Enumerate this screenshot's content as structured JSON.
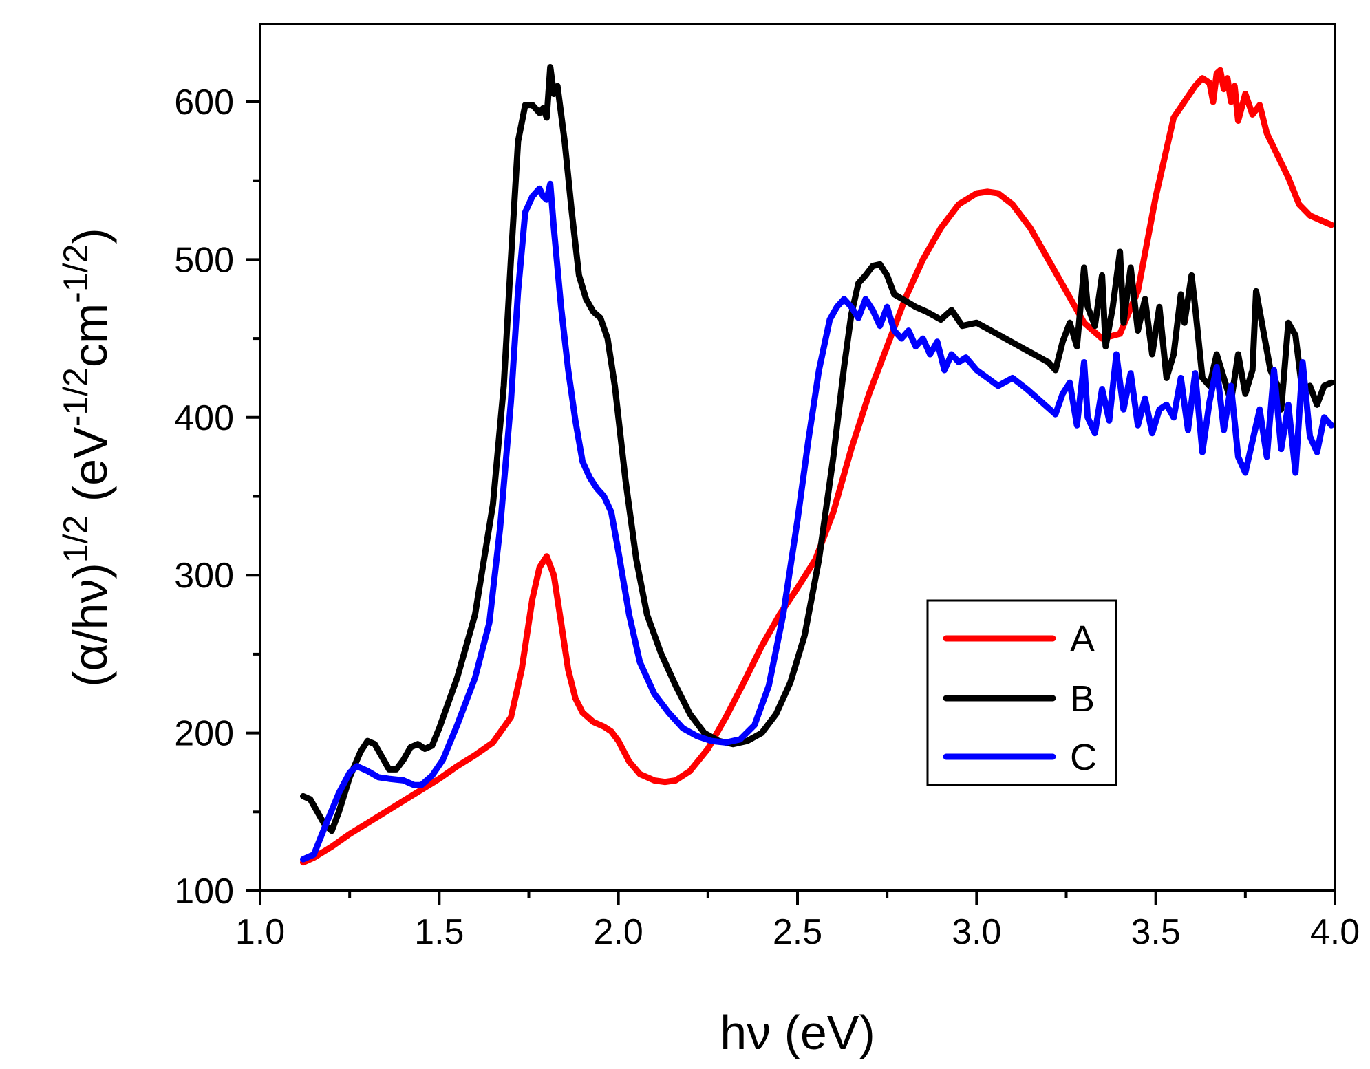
{
  "chart_data": {
    "type": "line",
    "title": "",
    "xlabel": "hν (eV)",
    "ylabel": {
      "base": "(α/hν)",
      "exp1": "1/2",
      "unit1": " (eV",
      "exp2": "-1/2",
      "unit2": "cm",
      "exp3": "-1/2",
      "close": ")"
    },
    "xlim": [
      1.0,
      4.0
    ],
    "ylim": [
      100,
      650
    ],
    "xticks": [
      "1.0",
      "1.5",
      "2.0",
      "2.5",
      "3.0",
      "3.5",
      "4.0"
    ],
    "yticks": [
      "100",
      "200",
      "300",
      "400",
      "500",
      "600"
    ],
    "legend_position": "lower-right",
    "series": [
      {
        "name": "A",
        "color": "#ff0000",
        "points": [
          [
            1.12,
            118
          ],
          [
            1.15,
            121
          ],
          [
            1.2,
            128
          ],
          [
            1.25,
            136
          ],
          [
            1.3,
            143
          ],
          [
            1.35,
            150
          ],
          [
            1.4,
            157
          ],
          [
            1.45,
            164
          ],
          [
            1.5,
            171
          ],
          [
            1.55,
            179
          ],
          [
            1.6,
            186
          ],
          [
            1.65,
            194
          ],
          [
            1.7,
            210
          ],
          [
            1.73,
            240
          ],
          [
            1.76,
            285
          ],
          [
            1.78,
            305
          ],
          [
            1.8,
            312
          ],
          [
            1.82,
            300
          ],
          [
            1.84,
            270
          ],
          [
            1.86,
            240
          ],
          [
            1.88,
            222
          ],
          [
            1.9,
            213
          ],
          [
            1.93,
            207
          ],
          [
            1.96,
            204
          ],
          [
            1.98,
            201
          ],
          [
            2.0,
            195
          ],
          [
            2.03,
            182
          ],
          [
            2.06,
            174
          ],
          [
            2.1,
            170
          ],
          [
            2.13,
            169
          ],
          [
            2.16,
            170
          ],
          [
            2.2,
            176
          ],
          [
            2.25,
            190
          ],
          [
            2.3,
            210
          ],
          [
            2.35,
            232
          ],
          [
            2.4,
            255
          ],
          [
            2.45,
            275
          ],
          [
            2.5,
            292
          ],
          [
            2.55,
            310
          ],
          [
            2.6,
            340
          ],
          [
            2.65,
            380
          ],
          [
            2.7,
            415
          ],
          [
            2.75,
            445
          ],
          [
            2.8,
            475
          ],
          [
            2.85,
            500
          ],
          [
            2.9,
            520
          ],
          [
            2.95,
            535
          ],
          [
            3.0,
            542
          ],
          [
            3.03,
            543
          ],
          [
            3.06,
            542
          ],
          [
            3.1,
            535
          ],
          [
            3.15,
            520
          ],
          [
            3.2,
            500
          ],
          [
            3.25,
            480
          ],
          [
            3.3,
            460
          ],
          [
            3.35,
            450
          ],
          [
            3.4,
            453
          ],
          [
            3.45,
            480
          ],
          [
            3.5,
            540
          ],
          [
            3.55,
            590
          ],
          [
            3.58,
            600
          ],
          [
            3.61,
            610
          ],
          [
            3.63,
            615
          ],
          [
            3.65,
            612
          ],
          [
            3.66,
            600
          ],
          [
            3.67,
            618
          ],
          [
            3.68,
            620
          ],
          [
            3.69,
            608
          ],
          [
            3.7,
            615
          ],
          [
            3.71,
            600
          ],
          [
            3.72,
            610
          ],
          [
            3.73,
            588
          ],
          [
            3.75,
            605
          ],
          [
            3.77,
            592
          ],
          [
            3.79,
            598
          ],
          [
            3.81,
            580
          ],
          [
            3.84,
            566
          ],
          [
            3.87,
            552
          ],
          [
            3.9,
            535
          ],
          [
            3.93,
            528
          ],
          [
            3.96,
            525
          ],
          [
            3.99,
            522
          ]
        ]
      },
      {
        "name": "B",
        "color": "#000000",
        "points": [
          [
            1.12,
            160
          ],
          [
            1.14,
            158
          ],
          [
            1.16,
            150
          ],
          [
            1.18,
            142
          ],
          [
            1.2,
            138
          ],
          [
            1.22,
            150
          ],
          [
            1.25,
            172
          ],
          [
            1.28,
            188
          ],
          [
            1.3,
            195
          ],
          [
            1.32,
            193
          ],
          [
            1.34,
            185
          ],
          [
            1.36,
            177
          ],
          [
            1.38,
            177
          ],
          [
            1.4,
            183
          ],
          [
            1.42,
            191
          ],
          [
            1.44,
            193
          ],
          [
            1.46,
            190
          ],
          [
            1.48,
            192
          ],
          [
            1.5,
            203
          ],
          [
            1.55,
            235
          ],
          [
            1.6,
            275
          ],
          [
            1.65,
            345
          ],
          [
            1.68,
            420
          ],
          [
            1.7,
            500
          ],
          [
            1.72,
            575
          ],
          [
            1.74,
            598
          ],
          [
            1.76,
            598
          ],
          [
            1.78,
            593
          ],
          [
            1.79,
            596
          ],
          [
            1.8,
            590
          ],
          [
            1.81,
            622
          ],
          [
            1.82,
            605
          ],
          [
            1.83,
            610
          ],
          [
            1.85,
            575
          ],
          [
            1.87,
            530
          ],
          [
            1.89,
            490
          ],
          [
            1.91,
            475
          ],
          [
            1.93,
            467
          ],
          [
            1.95,
            463
          ],
          [
            1.97,
            450
          ],
          [
            1.99,
            420
          ],
          [
            2.02,
            360
          ],
          [
            2.05,
            310
          ],
          [
            2.08,
            275
          ],
          [
            2.12,
            250
          ],
          [
            2.16,
            230
          ],
          [
            2.2,
            212
          ],
          [
            2.24,
            200
          ],
          [
            2.28,
            195
          ],
          [
            2.32,
            193
          ],
          [
            2.36,
            195
          ],
          [
            2.4,
            200
          ],
          [
            2.44,
            212
          ],
          [
            2.48,
            232
          ],
          [
            2.52,
            262
          ],
          [
            2.56,
            310
          ],
          [
            2.6,
            375
          ],
          [
            2.63,
            432
          ],
          [
            2.65,
            465
          ],
          [
            2.67,
            485
          ],
          [
            2.69,
            490
          ],
          [
            2.71,
            496
          ],
          [
            2.73,
            497
          ],
          [
            2.75,
            490
          ],
          [
            2.77,
            478
          ],
          [
            2.8,
            474
          ],
          [
            2.83,
            470
          ],
          [
            2.86,
            467
          ],
          [
            2.9,
            462
          ],
          [
            2.93,
            468
          ],
          [
            2.96,
            458
          ],
          [
            3.0,
            460
          ],
          [
            3.04,
            455
          ],
          [
            3.08,
            450
          ],
          [
            3.12,
            445
          ],
          [
            3.16,
            440
          ],
          [
            3.2,
            435
          ],
          [
            3.22,
            430
          ],
          [
            3.24,
            448
          ],
          [
            3.26,
            460
          ],
          [
            3.28,
            445
          ],
          [
            3.3,
            495
          ],
          [
            3.31,
            470
          ],
          [
            3.33,
            458
          ],
          [
            3.35,
            490
          ],
          [
            3.36,
            445
          ],
          [
            3.38,
            470
          ],
          [
            3.4,
            505
          ],
          [
            3.41,
            460
          ],
          [
            3.43,
            495
          ],
          [
            3.45,
            455
          ],
          [
            3.47,
            475
          ],
          [
            3.49,
            440
          ],
          [
            3.51,
            470
          ],
          [
            3.53,
            425
          ],
          [
            3.55,
            440
          ],
          [
            3.57,
            478
          ],
          [
            3.58,
            460
          ],
          [
            3.6,
            490
          ],
          [
            3.61,
            470
          ],
          [
            3.63,
            425
          ],
          [
            3.65,
            420
          ],
          [
            3.67,
            440
          ],
          [
            3.69,
            425
          ],
          [
            3.71,
            410
          ],
          [
            3.73,
            440
          ],
          [
            3.75,
            415
          ],
          [
            3.77,
            430
          ],
          [
            3.78,
            480
          ],
          [
            3.8,
            455
          ],
          [
            3.82,
            430
          ],
          [
            3.84,
            420
          ],
          [
            3.85,
            405
          ],
          [
            3.87,
            460
          ],
          [
            3.89,
            452
          ],
          [
            3.91,
            415
          ],
          [
            3.93,
            420
          ],
          [
            3.95,
            408
          ],
          [
            3.97,
            420
          ],
          [
            3.99,
            422
          ]
        ]
      },
      {
        "name": "C",
        "color": "#0000ff",
        "points": [
          [
            1.12,
            120
          ],
          [
            1.15,
            123
          ],
          [
            1.18,
            140
          ],
          [
            1.22,
            162
          ],
          [
            1.25,
            175
          ],
          [
            1.27,
            179
          ],
          [
            1.3,
            176
          ],
          [
            1.33,
            172
          ],
          [
            1.36,
            171
          ],
          [
            1.4,
            170
          ],
          [
            1.43,
            167
          ],
          [
            1.45,
            167
          ],
          [
            1.48,
            173
          ],
          [
            1.51,
            183
          ],
          [
            1.55,
            205
          ],
          [
            1.6,
            235
          ],
          [
            1.64,
            270
          ],
          [
            1.67,
            330
          ],
          [
            1.7,
            410
          ],
          [
            1.72,
            480
          ],
          [
            1.74,
            530
          ],
          [
            1.76,
            540
          ],
          [
            1.78,
            545
          ],
          [
            1.79,
            540
          ],
          [
            1.8,
            538
          ],
          [
            1.81,
            548
          ],
          [
            1.82,
            520
          ],
          [
            1.84,
            470
          ],
          [
            1.86,
            430
          ],
          [
            1.88,
            398
          ],
          [
            1.9,
            372
          ],
          [
            1.92,
            362
          ],
          [
            1.94,
            355
          ],
          [
            1.96,
            350
          ],
          [
            1.98,
            340
          ],
          [
            2.0,
            315
          ],
          [
            2.03,
            275
          ],
          [
            2.06,
            245
          ],
          [
            2.1,
            225
          ],
          [
            2.14,
            213
          ],
          [
            2.18,
            203
          ],
          [
            2.22,
            198
          ],
          [
            2.26,
            195
          ],
          [
            2.3,
            194
          ],
          [
            2.34,
            196
          ],
          [
            2.38,
            205
          ],
          [
            2.42,
            230
          ],
          [
            2.46,
            275
          ],
          [
            2.5,
            335
          ],
          [
            2.53,
            385
          ],
          [
            2.56,
            430
          ],
          [
            2.59,
            462
          ],
          [
            2.61,
            470
          ],
          [
            2.63,
            475
          ],
          [
            2.65,
            470
          ],
          [
            2.67,
            463
          ],
          [
            2.69,
            475
          ],
          [
            2.71,
            468
          ],
          [
            2.73,
            458
          ],
          [
            2.75,
            470
          ],
          [
            2.77,
            455
          ],
          [
            2.79,
            450
          ],
          [
            2.81,
            455
          ],
          [
            2.83,
            445
          ],
          [
            2.85,
            450
          ],
          [
            2.87,
            440
          ],
          [
            2.89,
            448
          ],
          [
            2.91,
            430
          ],
          [
            2.93,
            440
          ],
          [
            2.95,
            435
          ],
          [
            2.97,
            438
          ],
          [
            3.0,
            430
          ],
          [
            3.03,
            425
          ],
          [
            3.06,
            420
          ],
          [
            3.1,
            425
          ],
          [
            3.14,
            418
          ],
          [
            3.18,
            410
          ],
          [
            3.22,
            402
          ],
          [
            3.24,
            415
          ],
          [
            3.26,
            422
          ],
          [
            3.28,
            395
          ],
          [
            3.3,
            435
          ],
          [
            3.31,
            400
          ],
          [
            3.33,
            390
          ],
          [
            3.35,
            418
          ],
          [
            3.37,
            398
          ],
          [
            3.39,
            440
          ],
          [
            3.41,
            405
          ],
          [
            3.43,
            428
          ],
          [
            3.45,
            395
          ],
          [
            3.47,
            412
          ],
          [
            3.49,
            390
          ],
          [
            3.51,
            405
          ],
          [
            3.53,
            408
          ],
          [
            3.55,
            400
          ],
          [
            3.57,
            425
          ],
          [
            3.59,
            392
          ],
          [
            3.61,
            428
          ],
          [
            3.63,
            378
          ],
          [
            3.65,
            410
          ],
          [
            3.67,
            432
          ],
          [
            3.69,
            392
          ],
          [
            3.71,
            420
          ],
          [
            3.73,
            375
          ],
          [
            3.75,
            365
          ],
          [
            3.77,
            385
          ],
          [
            3.79,
            405
          ],
          [
            3.81,
            375
          ],
          [
            3.83,
            430
          ],
          [
            3.85,
            380
          ],
          [
            3.87,
            408
          ],
          [
            3.89,
            365
          ],
          [
            3.91,
            435
          ],
          [
            3.93,
            388
          ],
          [
            3.95,
            378
          ],
          [
            3.97,
            400
          ],
          [
            3.99,
            395
          ]
        ]
      }
    ]
  }
}
